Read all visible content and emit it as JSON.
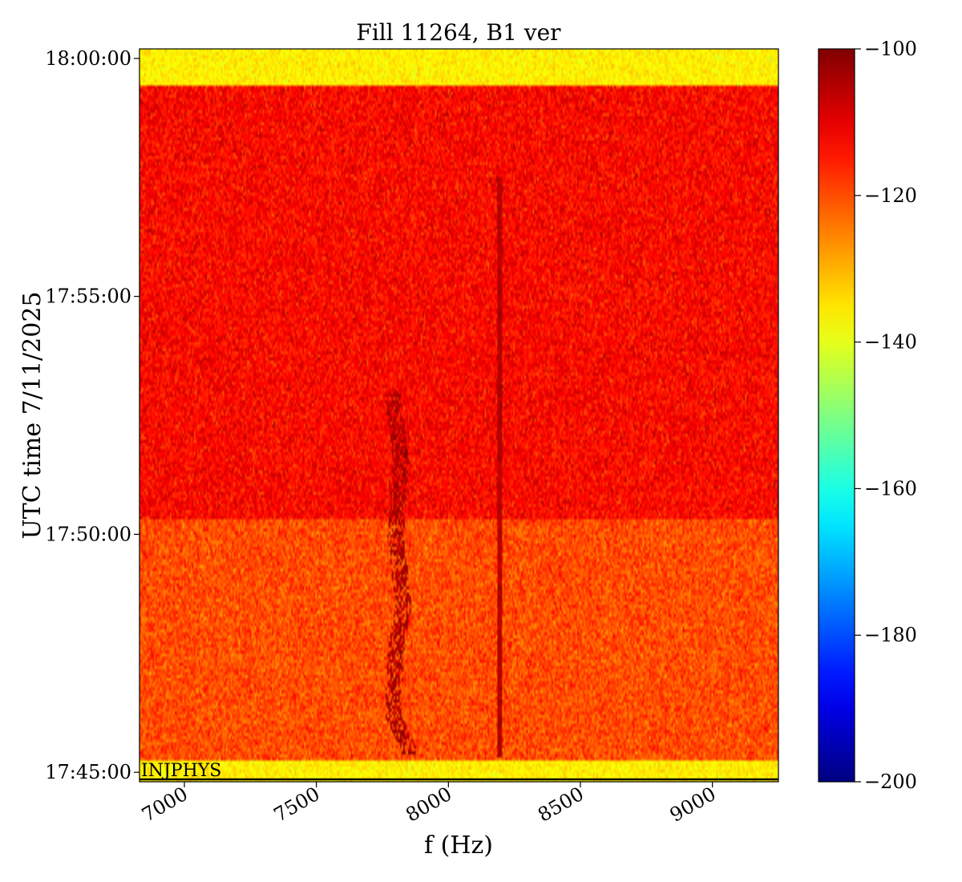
{
  "chart_data": {
    "type": "heatmap",
    "title": "Fill 11264, B1 ver",
    "xlabel": "f (Hz)",
    "ylabel": "UTC time 7/11/2025",
    "xlim": [
      6830,
      9250
    ],
    "x_ticks": [
      {
        "value": 7000,
        "label": "7000"
      },
      {
        "value": 7500,
        "label": "7500"
      },
      {
        "value": 8000,
        "label": "8000"
      },
      {
        "value": 8500,
        "label": "8500"
      },
      {
        "value": 9000,
        "label": "9000"
      }
    ],
    "ylim_minutes": [
      -0.2,
      15.2
    ],
    "y_ticks": [
      {
        "value": 0,
        "label": "17:45:00"
      },
      {
        "value": 5,
        "label": "17:50:00"
      },
      {
        "value": 10,
        "label": "17:55:00"
      },
      {
        "value": 15,
        "label": "18:00:00"
      }
    ],
    "colorbar": {
      "colormap": "jet",
      "range": [
        -200,
        -100
      ],
      "ticks": [
        {
          "value": -100,
          "label": "−100"
        },
        {
          "value": -120,
          "label": "−120"
        },
        {
          "value": -140,
          "label": "−140"
        },
        {
          "value": -160,
          "label": "−160"
        },
        {
          "value": -180,
          "label": "−180"
        },
        {
          "value": -200,
          "label": "−200"
        }
      ]
    },
    "bands": [
      {
        "from_min": 14.42,
        "to_min": 15.2,
        "level_db": -136
      },
      {
        "from_min": 5.3,
        "to_min": 14.42,
        "level_db": -113
      },
      {
        "from_min": 0.22,
        "to_min": 5.3,
        "level_db": -120
      },
      {
        "from_min": -0.2,
        "to_min": 0.22,
        "level_db": -136
      }
    ],
    "features": [
      {
        "kind": "vertical-line",
        "f_hz": 8195,
        "from_min": 0.3,
        "to_min": 12.5,
        "level_db": -105
      },
      {
        "kind": "drifting-line",
        "points": [
          [
            0.35,
            7860
          ],
          [
            1.2,
            7790
          ],
          [
            2.5,
            7800
          ],
          [
            3.5,
            7830
          ],
          [
            5.0,
            7800
          ],
          [
            6.5,
            7820
          ],
          [
            8.0,
            7790
          ]
        ],
        "level_db": -104
      }
    ],
    "annotations": [
      {
        "text": "INJPHYS",
        "time_min": -0.15,
        "line_from_hz": 6830,
        "line_to_hz": 9250
      }
    ]
  }
}
